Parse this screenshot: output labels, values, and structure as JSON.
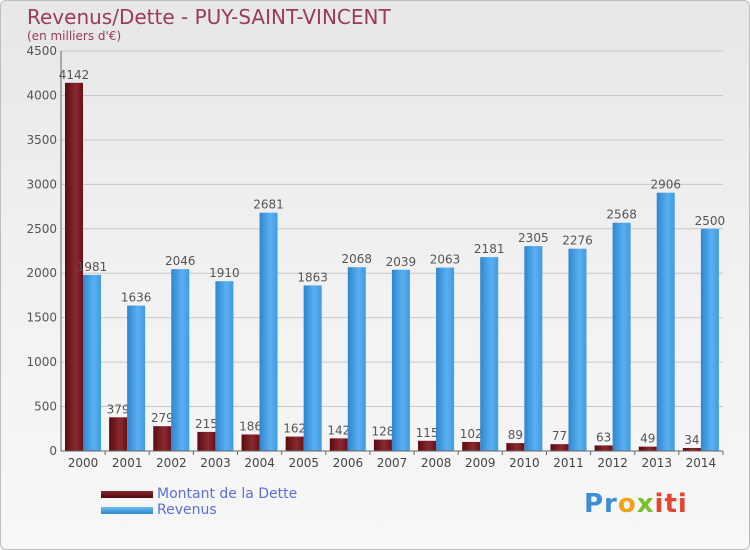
{
  "header": {
    "title": "Revenus/Dette - PUY-SAINT-VINCENT",
    "subtitle": "(en milliers d'€)"
  },
  "legend": {
    "items": [
      {
        "label": "Montant de la Dette",
        "color": "#6b1014"
      },
      {
        "label": "Revenus",
        "color": "#3f9be3"
      }
    ]
  },
  "logo": {
    "parts": [
      "Pr",
      "o",
      "x",
      "iti"
    ]
  },
  "chart_data": {
    "type": "bar",
    "categories": [
      "2000",
      "2001",
      "2002",
      "2003",
      "2004",
      "2005",
      "2006",
      "2007",
      "2008",
      "2009",
      "2010",
      "2011",
      "2012",
      "2013",
      "2014"
    ],
    "series": [
      {
        "name": "Montant de la Dette",
        "color": "#6b1014",
        "values": [
          4142,
          379,
          279,
          215,
          186,
          162,
          142,
          128,
          115,
          102,
          89,
          77,
          63,
          49,
          34
        ]
      },
      {
        "name": "Revenus",
        "color": "#3f9be3",
        "values": [
          1981,
          1636,
          2046,
          1910,
          2681,
          1863,
          2068,
          2039,
          2063,
          2181,
          2305,
          2276,
          2568,
          2906,
          2500
        ]
      }
    ],
    "title": "Revenus/Dette - PUY-SAINT-VINCENT",
    "subtitle": "(en milliers d'€)",
    "ylim": [
      0,
      4500
    ],
    "yticks": [
      0,
      500,
      1000,
      1500,
      2000,
      2500,
      3000,
      3500,
      4000,
      4500
    ],
    "grid": true,
    "legend_position": "bottom-left"
  }
}
